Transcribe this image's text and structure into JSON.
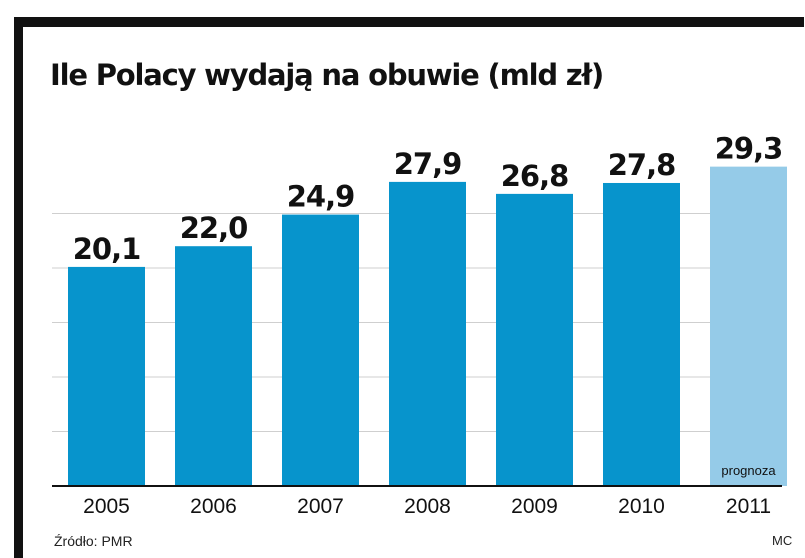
{
  "colors": {
    "bar_actual": "#0794CC",
    "bar_forecast": "#95CBE8",
    "grid": "#cfcfcf",
    "frame": "#111111"
  },
  "source": "Źródło: PMR",
  "author": "MC",
  "chart_data": {
    "type": "bar",
    "title": "Ile Polacy wydają na obuwie (mld zł)",
    "xlabel": "",
    "ylabel": "",
    "categories": [
      "2005",
      "2006",
      "2007",
      "2008",
      "2009",
      "2010",
      "2011"
    ],
    "values": [
      20.1,
      22.0,
      24.9,
      27.9,
      26.8,
      27.8,
      29.3
    ],
    "value_labels": [
      "20,1",
      "22,0",
      "24,9",
      "27,9",
      "26,8",
      "27,8",
      "29,3"
    ],
    "forecast_index": 6,
    "forecast_label": "prognoza",
    "ylim": [
      0,
      30
    ],
    "grid": true,
    "legend": "none"
  }
}
